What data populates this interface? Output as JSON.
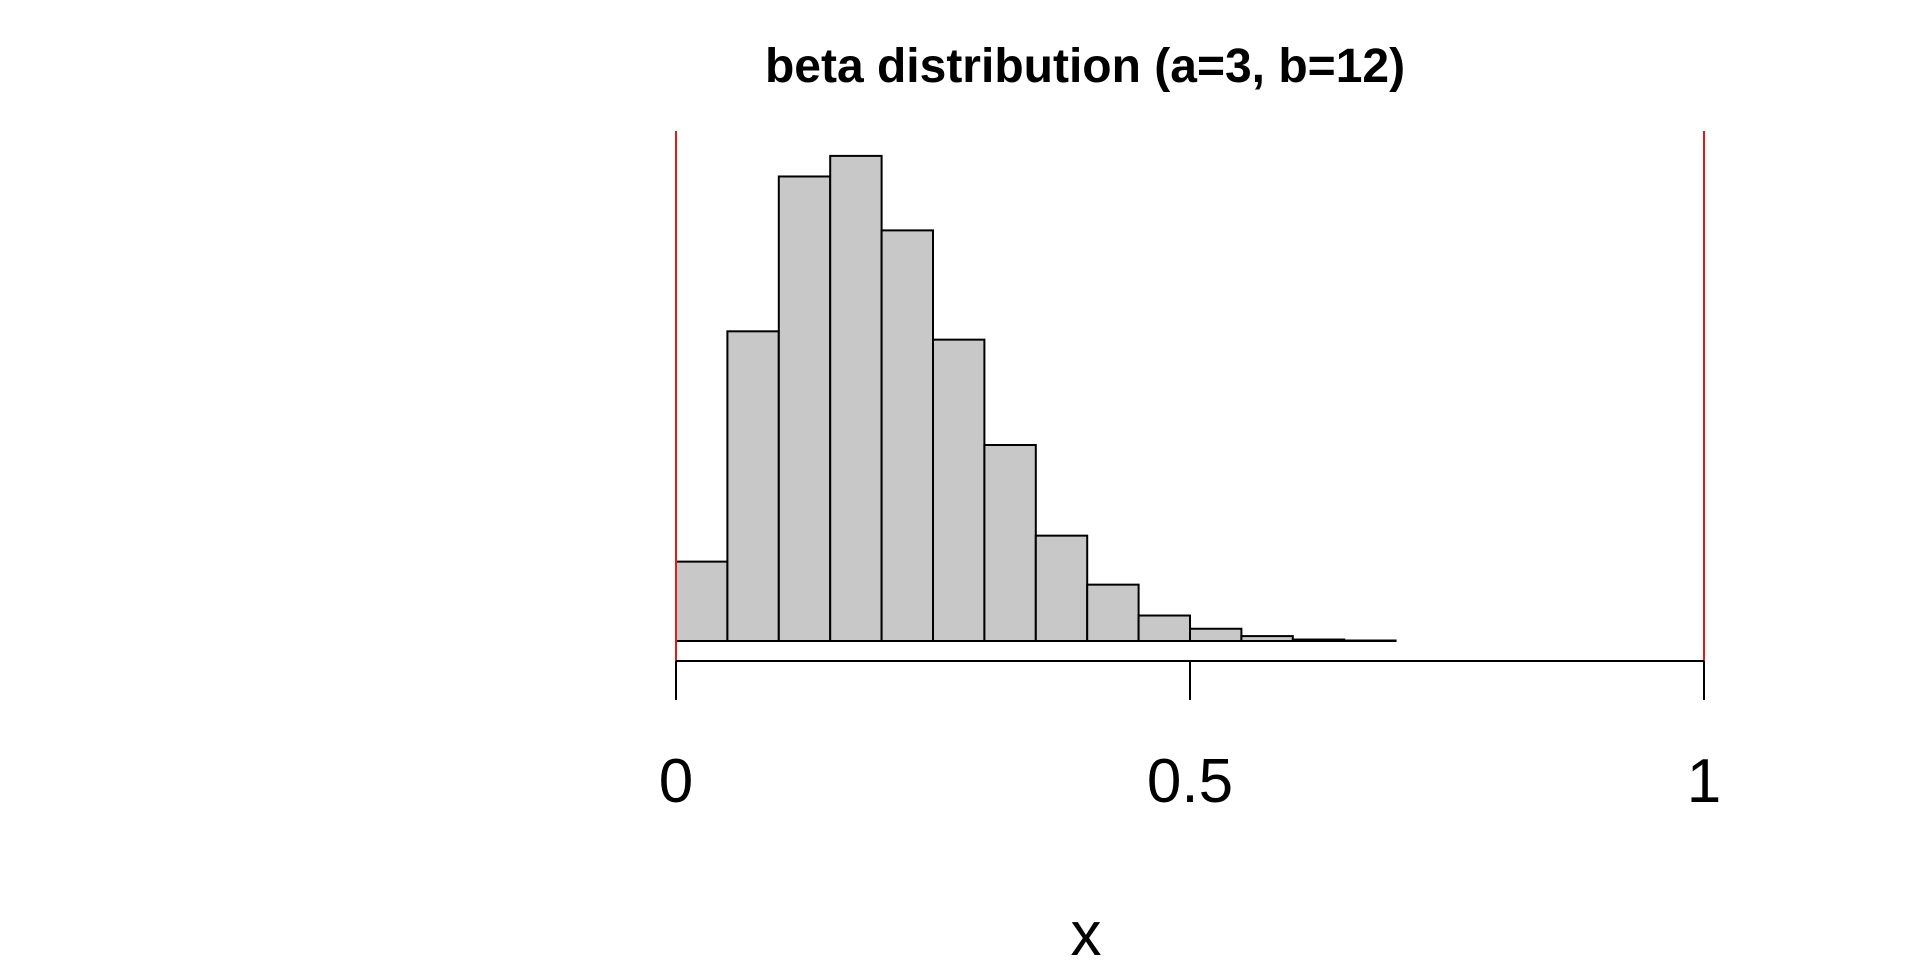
{
  "chart_data": {
    "type": "bar",
    "title": "beta distribution (a=3, b=12)",
    "xlabel": "x",
    "ylabel": "",
    "xlim": [
      0,
      1
    ],
    "ylim": [
      0,
      1
    ],
    "bin_width": 0.05,
    "bins": [
      {
        "x0": 0.0,
        "x1": 0.05,
        "value": 0.162
      },
      {
        "x0": 0.05,
        "x1": 0.1,
        "value": 0.632
      },
      {
        "x0": 0.1,
        "x1": 0.15,
        "value": 0.948
      },
      {
        "x0": 0.15,
        "x1": 0.2,
        "value": 0.99
      },
      {
        "x0": 0.2,
        "x1": 0.25,
        "value": 0.838
      },
      {
        "x0": 0.25,
        "x1": 0.3,
        "value": 0.615
      },
      {
        "x0": 0.3,
        "x1": 0.35,
        "value": 0.4
      },
      {
        "x0": 0.35,
        "x1": 0.4,
        "value": 0.215
      },
      {
        "x0": 0.4,
        "x1": 0.45,
        "value": 0.115
      },
      {
        "x0": 0.45,
        "x1": 0.5,
        "value": 0.052
      },
      {
        "x0": 0.5,
        "x1": 0.55,
        "value": 0.025
      },
      {
        "x0": 0.55,
        "x1": 0.6,
        "value": 0.01
      },
      {
        "x0": 0.6,
        "x1": 0.65,
        "value": 0.003
      },
      {
        "x0": 0.65,
        "x1": 0.7,
        "value": 0.001
      }
    ],
    "x_ticks": [
      {
        "value": 0,
        "label": "0"
      },
      {
        "value": 0.5,
        "label": "0.5"
      },
      {
        "value": 1,
        "label": "1"
      }
    ],
    "reference_lines": [
      0,
      1
    ],
    "bar_fill": "#c8c8c8",
    "bar_stroke": "#000000",
    "reference_line_color": "#e31a1c",
    "grid": false,
    "legend": "none"
  }
}
